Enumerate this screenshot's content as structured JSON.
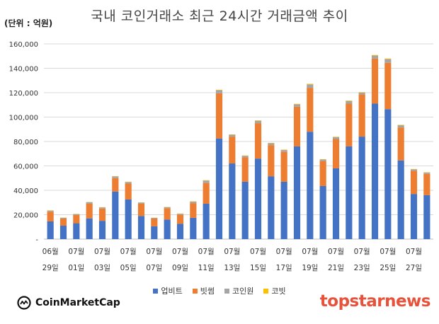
{
  "unit_label": "(단위 : 억원)",
  "logos": {
    "left": "CoinMarketCap",
    "right": "topstarnews"
  },
  "colors": {
    "upbit": "#4472c4",
    "bithumb": "#ed7d31",
    "coinone": "#a5a5a5",
    "korbit": "#ffc000"
  },
  "chart_data": {
    "type": "bar",
    "stacked": true,
    "title": "국내 코인거래소 최근 24시간 거래금액 추이",
    "ylim": [
      0,
      160000
    ],
    "yticks": [
      {
        "value": 0,
        "label": "-"
      },
      {
        "value": 20000,
        "label": "20,000"
      },
      {
        "value": 40000,
        "label": "40,000"
      },
      {
        "value": 60000,
        "label": "60,000"
      },
      {
        "value": 80000,
        "label": "80,000"
      },
      {
        "value": 100000,
        "label": "100,000"
      },
      {
        "value": 120000,
        "label": "120,000"
      },
      {
        "value": 140000,
        "label": "140,000"
      },
      {
        "value": 160000,
        "label": "160,000"
      }
    ],
    "grid": true,
    "legend_position": "bottom",
    "xtick_labels": [
      {
        "index": 0,
        "month": "06월",
        "day": "29일"
      },
      {
        "index": 2,
        "month": "07월",
        "day": "01일"
      },
      {
        "index": 4,
        "month": "07월",
        "day": "03일"
      },
      {
        "index": 6,
        "month": "07월",
        "day": "05일"
      },
      {
        "index": 8,
        "month": "07월",
        "day": "07일"
      },
      {
        "index": 10,
        "month": "07월",
        "day": "09일"
      },
      {
        "index": 12,
        "month": "07월",
        "day": "11일"
      },
      {
        "index": 14,
        "month": "07월",
        "day": "13일"
      },
      {
        "index": 16,
        "month": "07월",
        "day": "15일"
      },
      {
        "index": 18,
        "month": "07월",
        "day": "17일"
      },
      {
        "index": 20,
        "month": "07월",
        "day": "19일"
      },
      {
        "index": 22,
        "month": "07월",
        "day": "21일"
      },
      {
        "index": 24,
        "month": "07월",
        "day": "23일"
      },
      {
        "index": 26,
        "month": "07월",
        "day": "25일"
      },
      {
        "index": 28,
        "month": "07월",
        "day": "27일"
      }
    ],
    "series": [
      {
        "name": "업비트",
        "color": "#4472c4",
        "values": [
          14500,
          11000,
          13000,
          17000,
          15000,
          39000,
          32500,
          19000,
          10500,
          16000,
          12500,
          17500,
          29000,
          82500,
          62000,
          47000,
          66000,
          51500,
          47000,
          76000,
          88000,
          43500,
          58000,
          76000,
          84000,
          111000,
          106500,
          64500,
          37000,
          36000
        ]
      },
      {
        "name": "빗썸",
        "color": "#ed7d31",
        "values": [
          8000,
          5800,
          6700,
          12000,
          10000,
          11000,
          13000,
          10000,
          6300,
          9300,
          7600,
          12000,
          17000,
          37000,
          22000,
          20000,
          29000,
          25500,
          24500,
          32500,
          36000,
          20500,
          24000,
          35000,
          34500,
          37000,
          38000,
          27000,
          19000,
          17500
        ]
      },
      {
        "name": "코인원",
        "color": "#a5a5a5",
        "values": [
          900,
          700,
          800,
          1200,
          1000,
          1400,
          1300,
          900,
          600,
          900,
          700,
          1200,
          2000,
          2500,
          1500,
          1300,
          2000,
          1600,
          1500,
          2000,
          2800,
          1200,
          1600,
          2200,
          1600,
          2400,
          3000,
          1800,
          1200,
          1000
        ]
      },
      {
        "name": "코빗",
        "color": "#ffc000",
        "values": [
          200,
          150,
          200,
          250,
          200,
          250,
          250,
          200,
          150,
          200,
          150,
          250,
          300,
          400,
          300,
          250,
          350,
          300,
          300,
          350,
          500,
          250,
          300,
          400,
          350,
          500,
          500,
          350,
          250,
          250
        ]
      }
    ]
  }
}
